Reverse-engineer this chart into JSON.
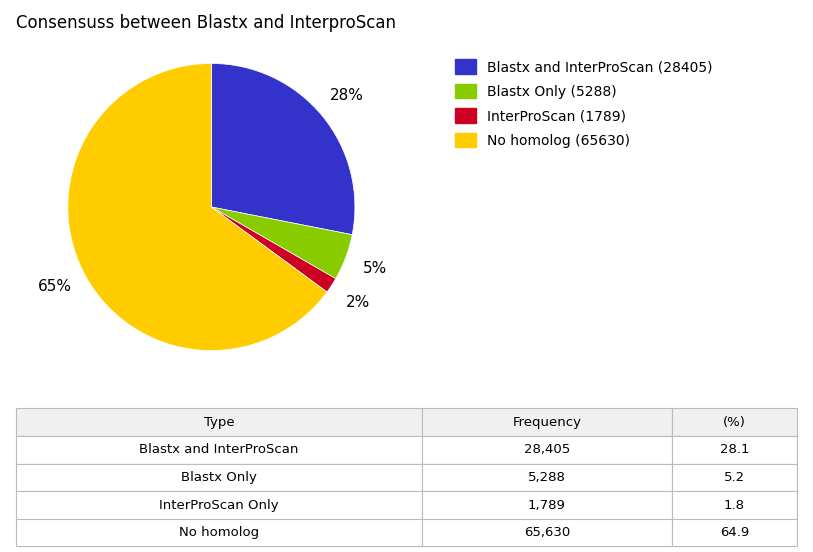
{
  "title": "Consensuss between Blastx and InterproScan",
  "slices": [
    28405,
    5288,
    1789,
    65630
  ],
  "labels": [
    "Blastx and InterProScan (28405)",
    "Blastx Only (5288)",
    "InterProScan (1789)",
    "No homolog (65630)"
  ],
  "pct_labels": [
    "28%",
    "5%",
    "2%",
    "65%"
  ],
  "colors": [
    "#3333cc",
    "#88cc00",
    "#cc0022",
    "#ffcc00"
  ],
  "table_headers": [
    "Type",
    "Frequency",
    "(%)"
  ],
  "table_rows": [
    [
      "Blastx and InterProScan",
      "28,405",
      "28.1"
    ],
    [
      "Blastx Only",
      "5,288",
      "5.2"
    ],
    [
      "InterProScan Only",
      "1,789",
      "1.8"
    ],
    [
      "No homolog",
      "65,630",
      "64.9"
    ]
  ],
  "background_color": "#ffffff",
  "title_fontsize": 12,
  "legend_fontsize": 10,
  "table_fontsize": 9.5,
  "pie_label_fontsize": 11
}
